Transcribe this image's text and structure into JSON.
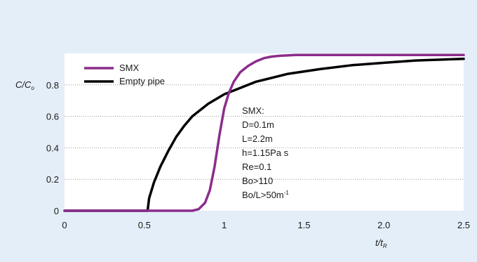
{
  "chart_data": {
    "type": "line",
    "xlabel": "t/t",
    "xlabel_sub": "R",
    "ylabel": "C/C",
    "ylabel_sub": "o",
    "xlim": [
      0,
      2.5
    ],
    "ylim": [
      0,
      1.0
    ],
    "x_ticks": [
      0,
      0.5,
      1,
      1.5,
      2.0,
      2.5
    ],
    "x_tick_labels": [
      "0",
      "0.5",
      "1",
      "1.5",
      "2.0",
      "2.5"
    ],
    "y_ticks": [
      0,
      0.2,
      0.4,
      0.6,
      0.8
    ],
    "y_tick_labels": [
      "0",
      "0.2",
      "0.4",
      "0.6",
      "0.8"
    ],
    "grid": "horizontal-dotted",
    "legend_position": "top-left",
    "series": [
      {
        "name": "SMX",
        "color": "#8b2d8b",
        "points": [
          [
            0,
            0
          ],
          [
            0.5,
            0
          ],
          [
            0.8,
            0
          ],
          [
            0.84,
            0.01
          ],
          [
            0.88,
            0.05
          ],
          [
            0.91,
            0.13
          ],
          [
            0.94,
            0.28
          ],
          [
            0.97,
            0.48
          ],
          [
            1.0,
            0.65
          ],
          [
            1.03,
            0.75
          ],
          [
            1.06,
            0.82
          ],
          [
            1.1,
            0.88
          ],
          [
            1.15,
            0.92
          ],
          [
            1.2,
            0.95
          ],
          [
            1.25,
            0.97
          ],
          [
            1.3,
            0.98
          ],
          [
            1.35,
            0.985
          ],
          [
            1.45,
            0.99
          ],
          [
            1.6,
            0.99
          ],
          [
            2.0,
            0.99
          ],
          [
            2.5,
            0.99
          ]
        ]
      },
      {
        "name": "Empty pipe",
        "color": "#000000",
        "points": [
          [
            0,
            0
          ],
          [
            0.5,
            0
          ],
          [
            0.52,
            0.0
          ],
          [
            0.53,
            0.08
          ],
          [
            0.56,
            0.18
          ],
          [
            0.6,
            0.28
          ],
          [
            0.65,
            0.38
          ],
          [
            0.7,
            0.47
          ],
          [
            0.75,
            0.54
          ],
          [
            0.8,
            0.6
          ],
          [
            0.9,
            0.68
          ],
          [
            1.0,
            0.74
          ],
          [
            1.1,
            0.78
          ],
          [
            1.2,
            0.82
          ],
          [
            1.4,
            0.87
          ],
          [
            1.6,
            0.9
          ],
          [
            1.8,
            0.925
          ],
          [
            2.0,
            0.94
          ],
          [
            2.2,
            0.955
          ],
          [
            2.5,
            0.965
          ]
        ]
      }
    ],
    "annotation": {
      "lines": [
        "SMX:",
        "D=0.1m",
        "L=2.2m",
        "h=1.15Pa s",
        "Re=0.1",
        "Bo>110",
        "Bo/L>50m"
      ],
      "last_line_sup": "-1"
    }
  }
}
